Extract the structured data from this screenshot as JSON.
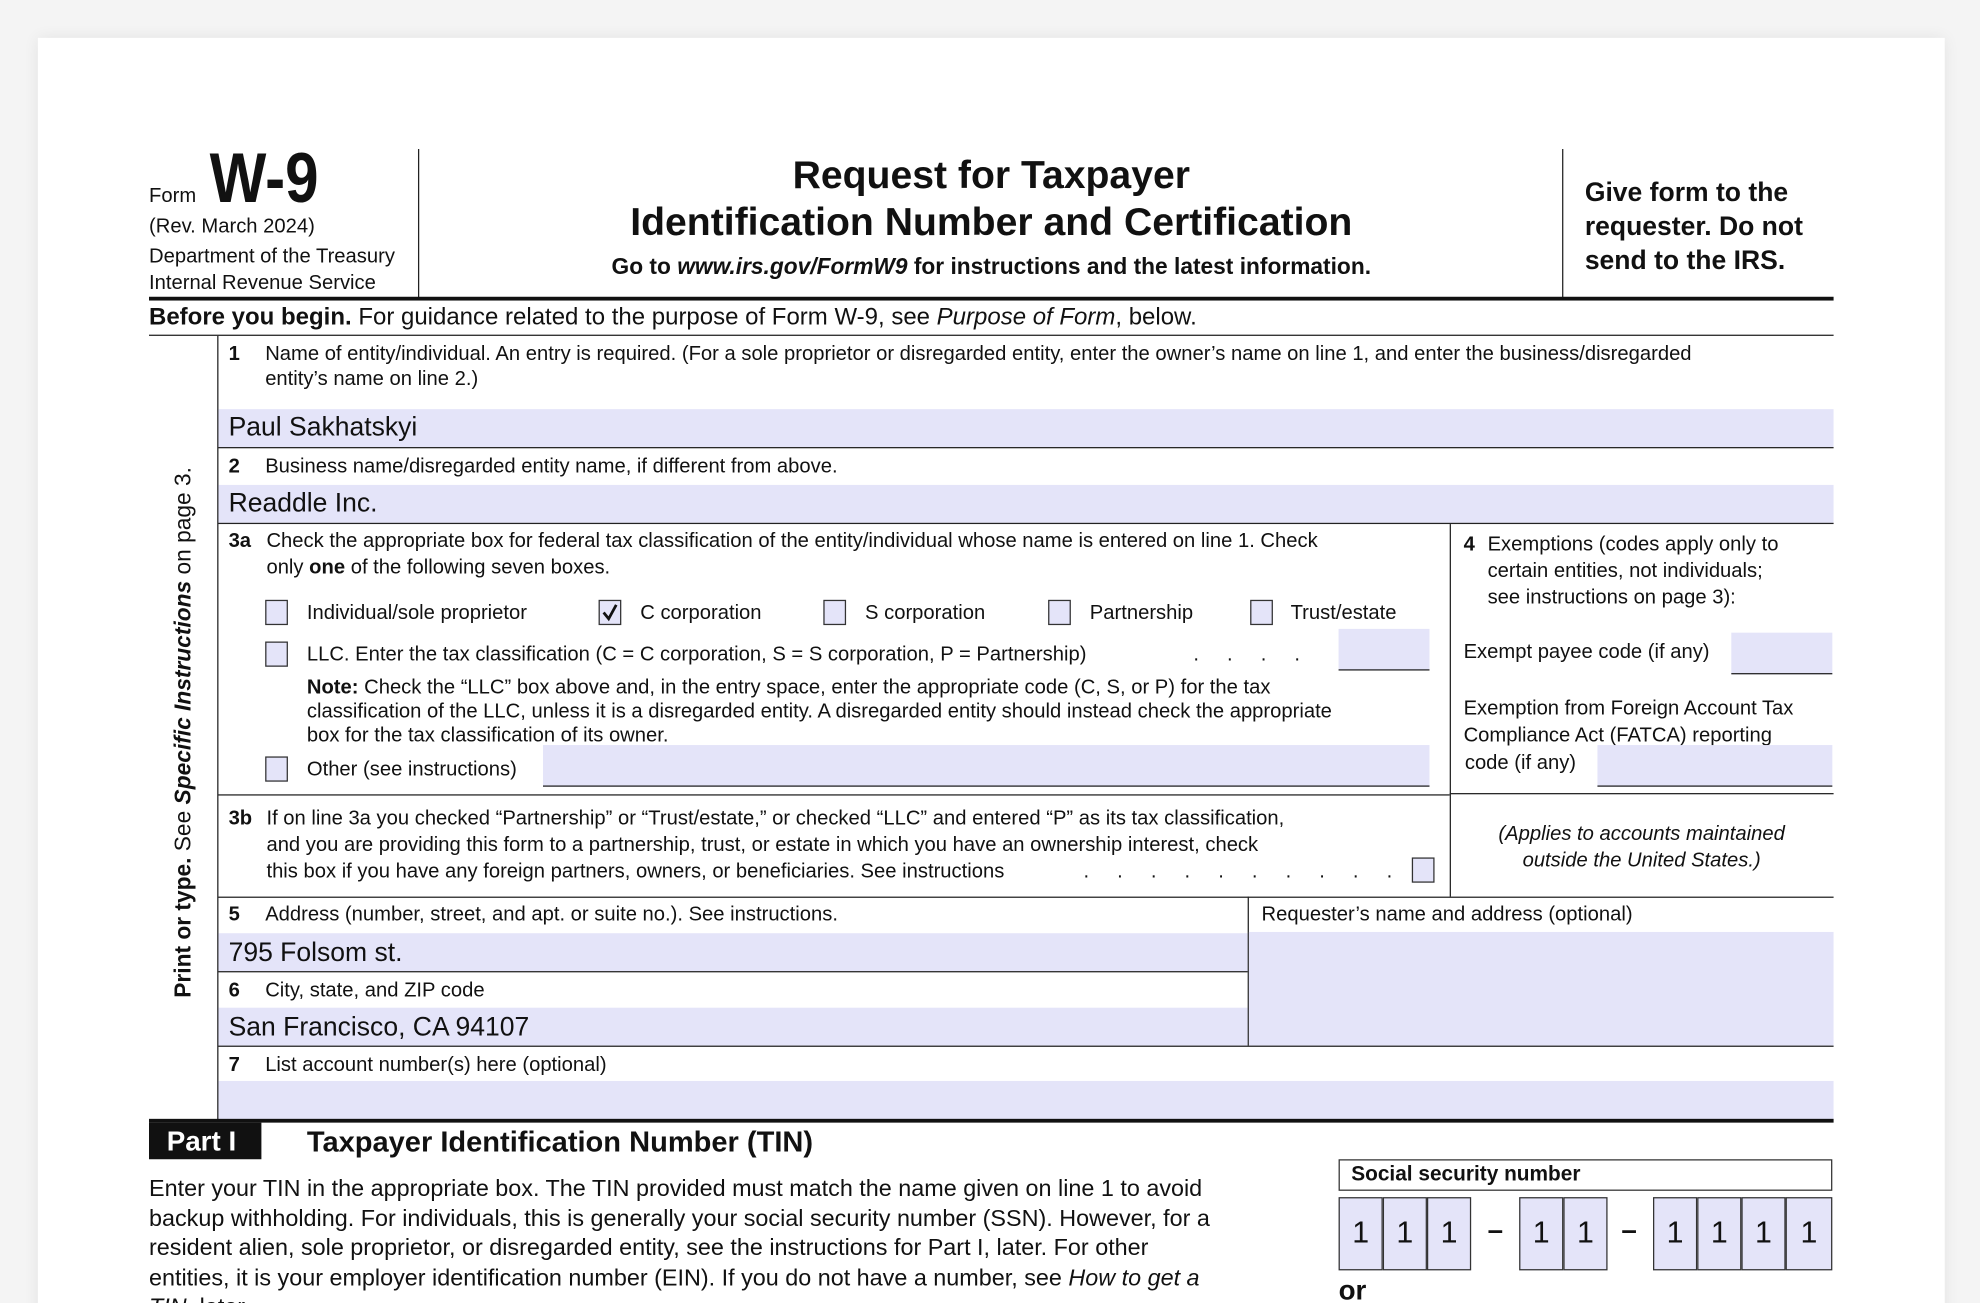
{
  "header": {
    "form_label": "Form",
    "form_number": "W-9",
    "revision": "(Rev. March 2024)",
    "department": "Department of the Treasury",
    "agency": "Internal Revenue Service",
    "title_line1": "Request for Taxpayer",
    "title_line2": "Identification Number and Certification",
    "goto_prefix": "Go to",
    "goto_url": "www.irs.gov/FormW9",
    "goto_suffix": "for instructions and the latest information.",
    "give_form": [
      "Give form to the",
      "requester. Do not",
      "send to the IRS."
    ]
  },
  "before_begin": {
    "bold": "Before you begin.",
    "text": "For guidance related to the purpose of Form W-9, see",
    "italic": "Purpose of Form",
    "end": ", below."
  },
  "side_label": {
    "bold": "Print or type.",
    "see": "See",
    "italic": "Specific Instructions",
    "end": "on page 3."
  },
  "line1": {
    "num": "1",
    "label1": "Name of entity/individual. An entry is required. (For a sole proprietor or disregarded entity, enter the owner’s name on line 1, and enter the business/disregarded",
    "label2": "entity’s name on line 2.)",
    "value": "Paul Sakhatskyi"
  },
  "line2": {
    "num": "2",
    "label": "Business name/disregarded entity name, if different from above.",
    "value": "Readdle Inc."
  },
  "line3a": {
    "num": "3a",
    "label1": "Check the appropriate box for federal tax classification of the entity/individual whose name is entered on line 1. Check",
    "label2_pre": "only",
    "label2_bold": "one",
    "label2_post": "of the following seven boxes.",
    "options": [
      {
        "label": "Individual/sole proprietor",
        "checked": false
      },
      {
        "label": "C corporation",
        "checked": true
      },
      {
        "label": "S corporation",
        "checked": false
      },
      {
        "label": "Partnership",
        "checked": false
      },
      {
        "label": "Trust/estate",
        "checked": false
      }
    ],
    "llc": {
      "label": "LLC. Enter the tax classification (C = C corporation, S = S corporation, P = Partnership)",
      "dots": ".     .     .     .",
      "checked": false,
      "value": ""
    },
    "note_bold": "Note:",
    "note1": "Check the “LLC” box above and, in the entry space, enter the appropriate code (C, S, or P) for the tax",
    "note2": "classification of the LLC, unless it is a disregarded entity. A disregarded entity should instead check the appropriate",
    "note3": "box for the tax classification of its owner.",
    "other": {
      "label": "Other (see instructions)",
      "checked": false,
      "value": ""
    }
  },
  "line3b": {
    "num": "3b",
    "text1": "If on line 3a you checked “Partnership” or “Trust/estate,” or checked “LLC” and entered “P” as its tax classification,",
    "text2": "and you are providing this form to a partnership, trust, or estate in which you have an ownership interest, check",
    "text3": "this box if you have any foreign partners, owners, or beneficiaries. See instructions",
    "dots": ".     .     .     .     .     .     .     .     .     .",
    "checked": false
  },
  "line4": {
    "num": "4",
    "text1": "Exemptions (codes apply only to",
    "text2": "certain entities, not individuals;",
    "text3": "see instructions on page 3):",
    "exempt_payee": "Exempt payee code (if any)",
    "fatca1": "Exemption from Foreign Account Tax",
    "fatca2": "Compliance Act (FATCA) reporting",
    "fatca3": "code (if any)",
    "applies1": "(Applies to accounts maintained",
    "applies2": "outside the United States.)"
  },
  "line5": {
    "num": "5",
    "label": "Address (number, street, and apt. or suite no.). See instructions.",
    "value": "795 Folsom st."
  },
  "requester": {
    "label": "Requester’s name and address (optional)",
    "value": ""
  },
  "line6": {
    "num": "6",
    "label": "City, state, and ZIP code",
    "value": "San Francisco, CA 94107"
  },
  "line7": {
    "num": "7",
    "label": "List account number(s) here (optional)",
    "value": ""
  },
  "part1": {
    "badge": "Part I",
    "title": "Taxpayer Identification Number (TIN)",
    "p1": "Enter your TIN in the appropriate box. The TIN provided must match the name given on line 1 to avoid",
    "p2": "backup withholding. For individuals, this is generally your social security number (SSN). However, for a",
    "p3": "resident alien, sole proprietor, or disregarded entity, see the instructions for Part I, later. For other",
    "p4_pre": "entities, it is your employer identification number (EIN). If you do not have a number, see",
    "p4_italic": "How to get a",
    "p5_italic": "TIN",
    "p5_post": ", later.",
    "ssn_label": "Social security number",
    "ssn_digits": [
      "1",
      "1",
      "1",
      "1",
      "1",
      "1",
      "1",
      "1",
      "1"
    ],
    "dash": "–",
    "or": "or"
  },
  "colors": {
    "field_fill": "#e4e4f9",
    "ink": "#111111",
    "background": "#f4f4f4"
  }
}
